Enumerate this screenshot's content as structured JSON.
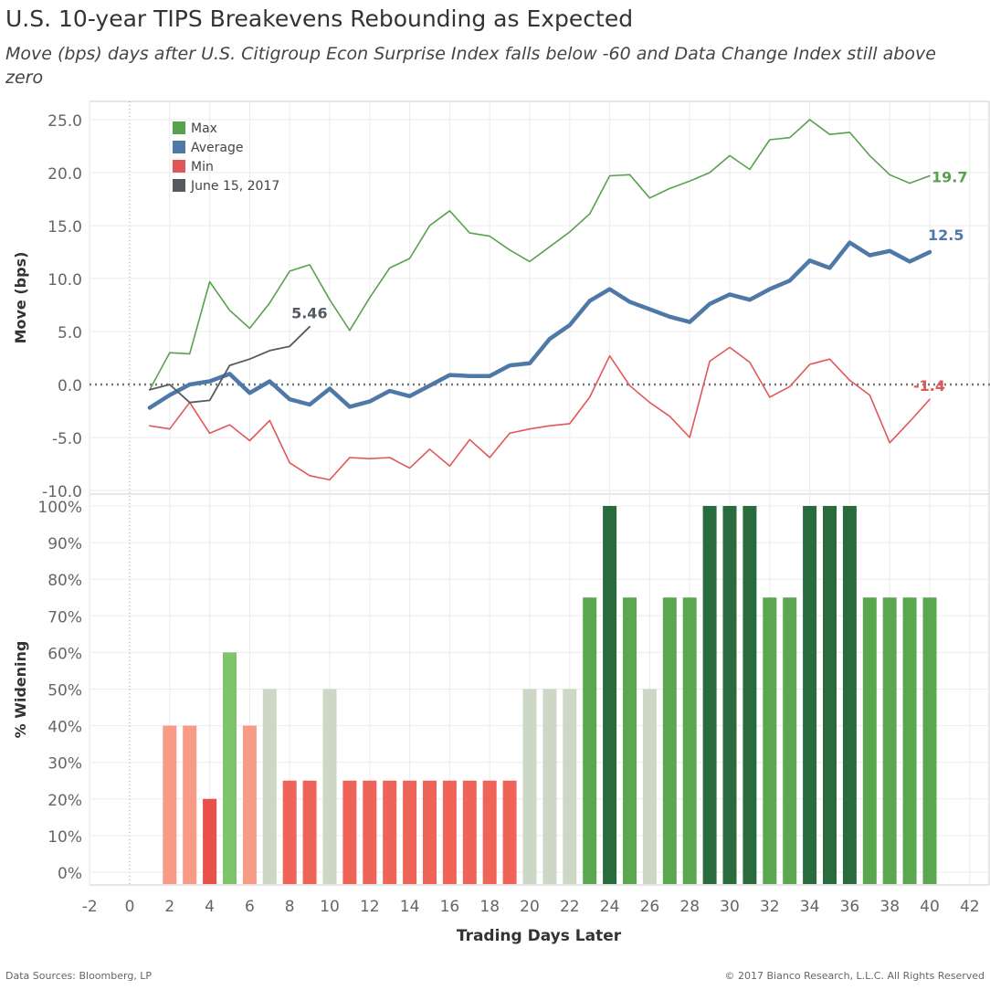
{
  "title": "U.S. 10-year TIPS Breakevens Rebounding as Expected",
  "subtitle": "Move (bps) days after U.S. Citigroup Econ Surprise Index falls below -60 and Data Change Index still above zero",
  "footer": {
    "source": "Data Sources: Bloomberg, LP",
    "copyright": "© 2017 Bianco Research, L.L.C. All Rights Reserved"
  },
  "colors": {
    "max": "#59a14f",
    "average": "#4e79a7",
    "min": "#e15759",
    "june": "#555a61",
    "grid": "#ebebeb",
    "zero_line": "#777777"
  },
  "chart_data": [
    {
      "type": "line",
      "ylabel": "Move (bps)",
      "ylim": [
        -11,
        26.5
      ],
      "xlim": [
        -2.5,
        42.5
      ],
      "yticks": [
        25.0,
        20.0,
        15.0,
        10.0,
        5.0,
        0.0,
        -5.0,
        -10.0
      ],
      "ytick_labels": [
        "25.0",
        "20.0",
        "15.0",
        "10.0",
        "5.0",
        "0.0",
        "-5.0",
        "-10.0"
      ],
      "legend_position": "top-left",
      "series": [
        {
          "name": "Max",
          "end_label": "19.7",
          "x": [
            1,
            2,
            3,
            4,
            5,
            6,
            7,
            8,
            9,
            10,
            11,
            12,
            13,
            14,
            15,
            16,
            17,
            18,
            19,
            20,
            21,
            22,
            23,
            24,
            25,
            26,
            27,
            28,
            29,
            30,
            31,
            32,
            33,
            34,
            35,
            36,
            37,
            38,
            39,
            40
          ],
          "values": [
            -0.5,
            3.0,
            2.9,
            9.7,
            7.0,
            5.3,
            7.7,
            10.7,
            11.3,
            8.0,
            5.1,
            8.2,
            11.0,
            11.9,
            15.0,
            16.4,
            14.3,
            14.0,
            12.7,
            11.6,
            13.0,
            14.4,
            16.1,
            19.7,
            19.8,
            17.6,
            18.5,
            19.2,
            20.0,
            21.6,
            20.3,
            23.1,
            23.3,
            25.0,
            23.6,
            23.8,
            21.6,
            19.8,
            19.0,
            19.7
          ]
        },
        {
          "name": "Average",
          "end_label": "12.5",
          "x": [
            1,
            2,
            3,
            4,
            5,
            6,
            7,
            8,
            9,
            10,
            11,
            12,
            13,
            14,
            15,
            16,
            17,
            18,
            19,
            20,
            21,
            22,
            23,
            24,
            25,
            26,
            27,
            28,
            29,
            30,
            31,
            32,
            33,
            34,
            35,
            36,
            37,
            38,
            39,
            40
          ],
          "values": [
            -2.2,
            -1.0,
            0.0,
            0.3,
            1.0,
            -0.8,
            0.3,
            -1.4,
            -1.9,
            -0.4,
            -2.1,
            -1.6,
            -0.6,
            -1.1,
            -0.1,
            0.9,
            0.8,
            0.8,
            1.8,
            2.0,
            4.3,
            5.6,
            7.9,
            9.0,
            7.8,
            7.1,
            6.4,
            5.9,
            7.6,
            8.5,
            8.0,
            9.0,
            9.8,
            11.7,
            11.0,
            13.4,
            12.2,
            12.6,
            11.6,
            12.5
          ]
        },
        {
          "name": "Min",
          "end_label": "-1.4",
          "x": [
            1,
            2,
            3,
            4,
            5,
            6,
            7,
            8,
            9,
            10,
            11,
            12,
            13,
            14,
            15,
            16,
            17,
            18,
            19,
            20,
            21,
            22,
            23,
            24,
            25,
            26,
            27,
            28,
            29,
            30,
            31,
            32,
            33,
            34,
            35,
            36,
            37,
            38,
            39,
            40
          ],
          "values": [
            -3.9,
            -4.2,
            -1.7,
            -4.6,
            -3.8,
            -5.3,
            -3.4,
            -7.4,
            -8.6,
            -9.0,
            -6.9,
            -7.0,
            -6.9,
            -7.9,
            -6.1,
            -7.7,
            -5.2,
            -6.9,
            -4.6,
            -4.2,
            -3.9,
            -3.7,
            -1.2,
            2.7,
            -0.1,
            -1.7,
            -3.0,
            -5.0,
            2.2,
            3.5,
            2.1,
            -1.2,
            -0.2,
            1.9,
            2.4,
            0.4,
            -1.0,
            -5.5,
            -3.5,
            -1.4
          ]
        },
        {
          "name": "June 15, 2017",
          "end_label": "5.46",
          "x": [
            1,
            2,
            3,
            4,
            5,
            6,
            7,
            8,
            9
          ],
          "values": [
            -0.5,
            0.0,
            -1.7,
            -1.5,
            1.8,
            2.4,
            3.2,
            3.6,
            5.46
          ]
        }
      ]
    },
    {
      "type": "bar",
      "ylabel": "% Widening",
      "xlabel": "Trading Days Later",
      "ylim": [
        0,
        100
      ],
      "yticks": [
        100,
        90,
        80,
        70,
        60,
        50,
        40,
        30,
        20,
        10,
        0
      ],
      "ytick_labels": [
        "100%",
        "90%",
        "80%",
        "70%",
        "60%",
        "50%",
        "40%",
        "30%",
        "20%",
        "10%",
        "0%"
      ],
      "xticks": [
        -2,
        0,
        2,
        4,
        6,
        8,
        10,
        12,
        14,
        16,
        18,
        20,
        22,
        24,
        26,
        28,
        30,
        32,
        34,
        36,
        38,
        40,
        42
      ],
      "xtick_labels": [
        "-2",
        "0",
        "2",
        "4",
        "6",
        "8",
        "10",
        "12",
        "14",
        "16",
        "18",
        "20",
        "22",
        "24",
        "26",
        "28",
        "30",
        "32",
        "34",
        "36",
        "38",
        "40",
        "42"
      ],
      "x": [
        2,
        3,
        4,
        5,
        6,
        7,
        8,
        9,
        10,
        11,
        12,
        13,
        14,
        15,
        16,
        17,
        18,
        19,
        20,
        21,
        22,
        23,
        24,
        25,
        26,
        27,
        28,
        29,
        30,
        31,
        32,
        33,
        34,
        35,
        36,
        37,
        38,
        39,
        40
      ],
      "values": [
        40,
        40,
        20,
        60,
        40,
        50,
        25,
        25,
        50,
        25,
        25,
        25,
        25,
        25,
        25,
        25,
        25,
        25,
        50,
        50,
        50,
        75,
        100,
        75,
        50,
        75,
        75,
        100,
        100,
        100,
        75,
        75,
        100,
        100,
        100,
        75,
        75,
        75,
        75
      ],
      "bar_colors": {
        "0-20": "#e8504a",
        "21-25": "#ef6458",
        "26-45": "#f79a86",
        "50": "#ccd7c6",
        "60": "#7dc46b",
        "75": "#5aa750",
        "100": "#2a6b3e"
      }
    }
  ]
}
